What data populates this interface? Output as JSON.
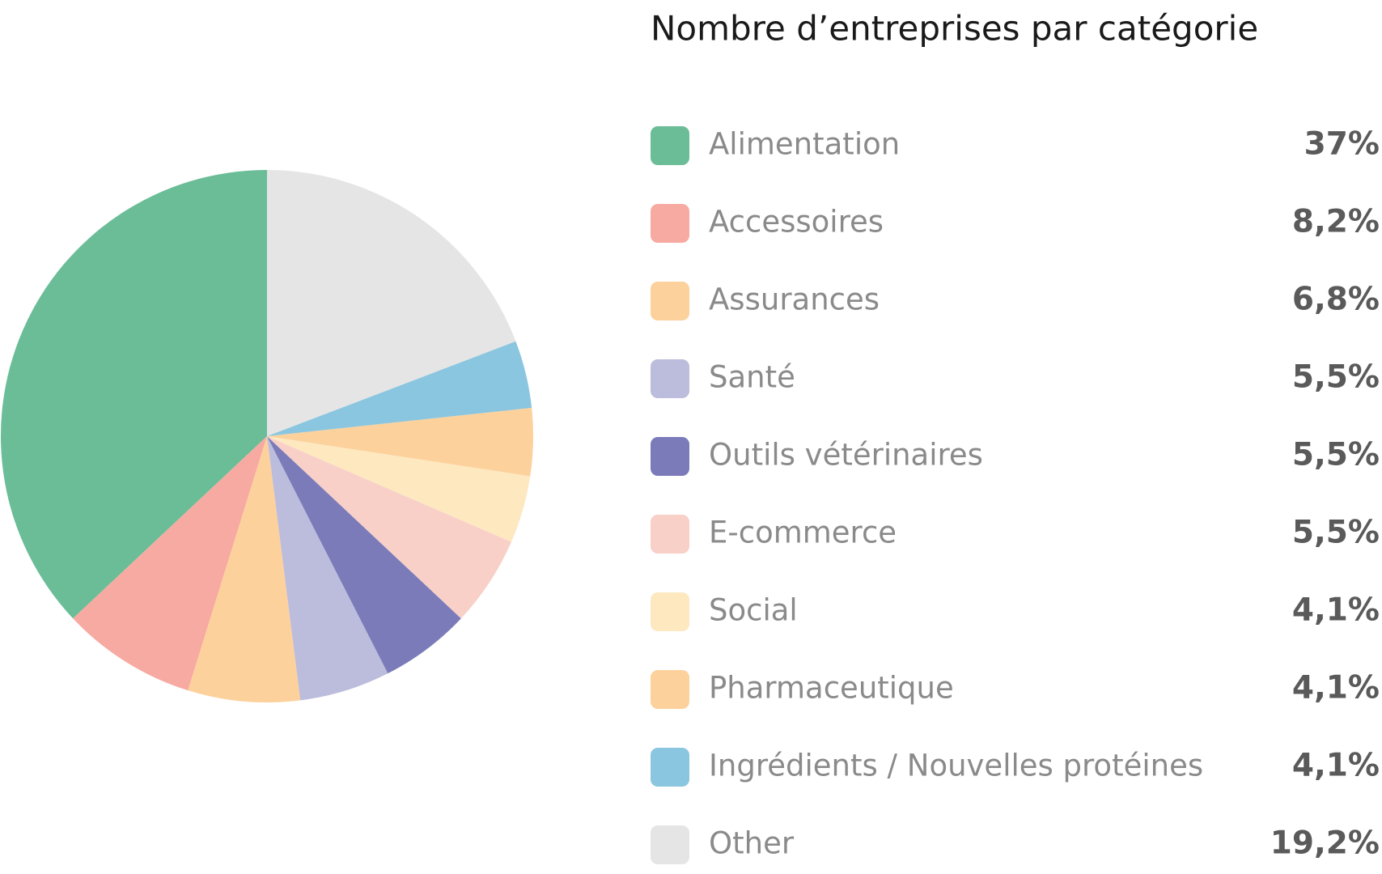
{
  "chart_data": {
    "type": "pie",
    "title": "Nombre d’entreprises par catégorie",
    "categories": [
      "Alimentation",
      "Accessoires",
      "Assurances",
      "Santé",
      "Outils vétérinaires",
      "E-commerce",
      "Social",
      "Pharmaceutique",
      "Ingrédients / Nouvelles protéines",
      "Other"
    ],
    "values": [
      37,
      8.2,
      6.8,
      5.5,
      5.5,
      5.5,
      4.1,
      4.1,
      4.1,
      19.2
    ],
    "value_labels": [
      "37%",
      "8,2%",
      "6,8%",
      "5,5%",
      "5,5%",
      "5,5%",
      "4,1%",
      "4,1%",
      "4,1%",
      "19,2%"
    ],
    "colors": [
      "#6bbd98",
      "#f7aaa1",
      "#fdd19c",
      "#bcbcdc",
      "#7b7bba",
      "#f8d0c8",
      "#fde8c0",
      "#fdd19c",
      "#8ac6df",
      "#e5e5e5"
    ]
  }
}
